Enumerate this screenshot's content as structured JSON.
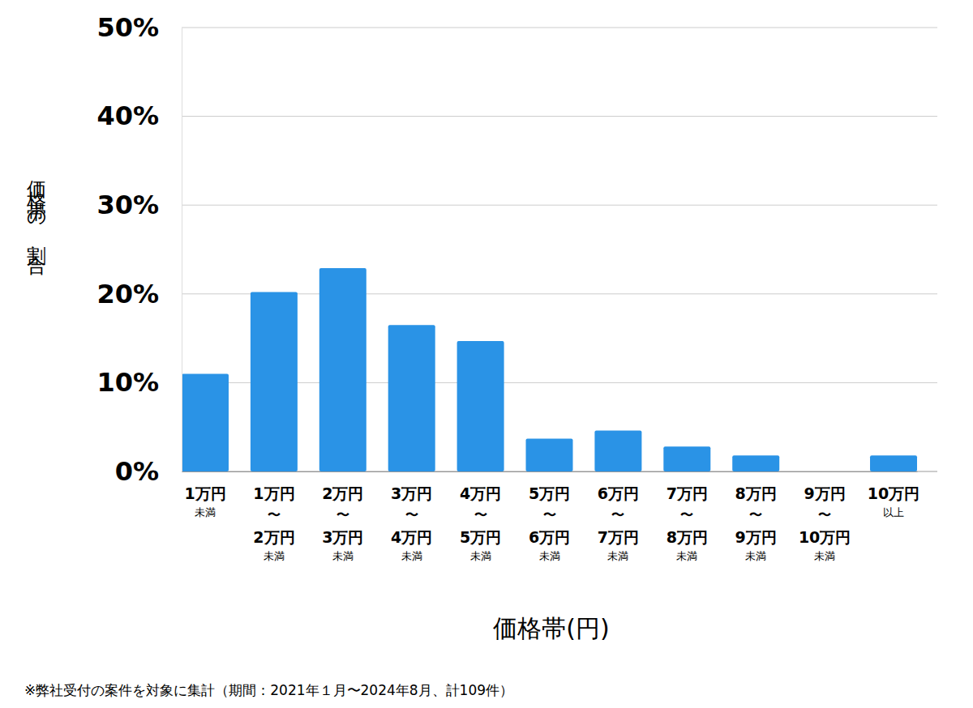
{
  "chart_data": {
    "type": "bar",
    "x_label": "価格帯(円)",
    "y_label": "価格帯の割合",
    "note": "※弊社受付の案件を対象に集計（期間：2021年１月〜2024年8月、計109件）",
    "categories": [
      "1万円\n未満",
      "1万円\n〜\n2万円\n未満",
      "2万円\n〜\n3万円\n未満",
      "3万円\n〜\n4万円\n未満",
      "4万円\n〜\n5万円\n未満",
      "5万円\n〜\n6万円\n未満",
      "6万円\n〜\n7万円\n未満",
      "7万円\n〜\n8万円\n未満",
      "8万円\n〜\n9万円\n未満",
      "9万円\n〜\n10万円\n未満",
      "10万円\n以上"
    ],
    "values": [
      11.0,
      20.2,
      22.9,
      16.5,
      14.7,
      3.7,
      4.6,
      2.8,
      1.8,
      0,
      1.8
    ],
    "color": "#2a93e6",
    "ylim": [
      0,
      50
    ],
    "yticks": [
      {
        "value": 0,
        "label": "0%"
      },
      {
        "value": 10,
        "label": "10%"
      },
      {
        "value": 20,
        "label": "20%"
      },
      {
        "value": 30,
        "label": "30%"
      },
      {
        "value": 40,
        "label": "40%"
      },
      {
        "value": 50,
        "label": "50%"
      }
    ],
    "grid": true
  }
}
